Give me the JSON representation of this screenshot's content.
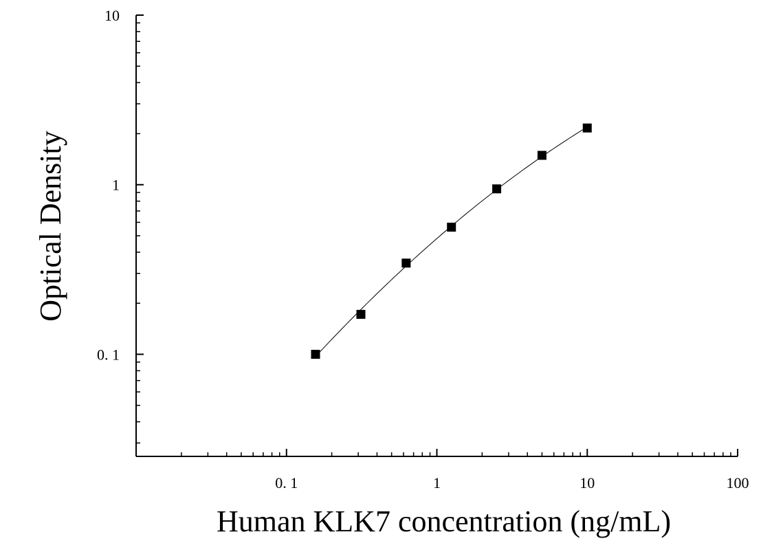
{
  "chart_data": {
    "type": "scatter",
    "title": "",
    "xlabel": "Human KLK7 concentration (ng/mL)",
    "ylabel": "Optical Density",
    "x_scale": "log",
    "y_scale": "log",
    "xlim": [
      0.01,
      100
    ],
    "ylim": [
      0.025,
      10
    ],
    "x_ticks": [
      {
        "value": 0.1,
        "label": "0. 1"
      },
      {
        "value": 1,
        "label": "1"
      },
      {
        "value": 10,
        "label": "10"
      },
      {
        "value": 100,
        "label": "100"
      }
    ],
    "y_ticks": [
      {
        "value": 0.1,
        "label": "0. 1"
      },
      {
        "value": 1,
        "label": "1"
      },
      {
        "value": 10,
        "label": "10"
      }
    ],
    "grid": false,
    "legend": false,
    "marker": "square",
    "fit_line": true,
    "colors": {
      "marker": "#000000",
      "line": "#000000",
      "axis": "#000000"
    },
    "series": [
      {
        "name": "",
        "x": [
          0.156,
          0.3125,
          0.625,
          1.25,
          2.5,
          5,
          10
        ],
        "y": [
          0.1,
          0.172,
          0.345,
          0.562,
          0.945,
          1.49,
          2.16
        ]
      }
    ]
  }
}
